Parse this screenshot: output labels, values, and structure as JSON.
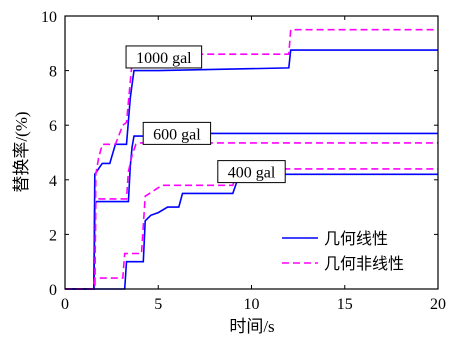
{
  "chart_data": {
    "type": "line",
    "xlabel": "时间/s",
    "ylabel": "替换率/(%)",
    "xlim": [
      0,
      20
    ],
    "ylim": [
      0,
      10
    ],
    "xticks": [
      "0",
      "5",
      "10",
      "15",
      "20"
    ],
    "yticks": [
      "0",
      "2",
      "4",
      "6",
      "8",
      "10"
    ],
    "grid": false,
    "legend_position": "bottom-right",
    "legend": [
      {
        "name": "几何线性",
        "color": "#0000ff",
        "dash": "solid"
      },
      {
        "name": "几何非线性",
        "color": "#ff00ff",
        "dash": "dashed"
      }
    ],
    "annotations": [
      {
        "text": "1000 gal",
        "x": 5.3,
        "y": 8.5
      },
      {
        "text": "600 gal",
        "x": 6.0,
        "y": 5.7
      },
      {
        "text": "400 gal",
        "x": 10.0,
        "y": 4.3
      }
    ],
    "series": [
      {
        "group": "1000 gal",
        "legend_name": "几何线性",
        "color": "#0000ff",
        "dash": "solid",
        "x": [
          0,
          1.55,
          1.6,
          1.7,
          1.9,
          2.0,
          2.4,
          2.7,
          3.3,
          3.5,
          3.6,
          3.7,
          5.0,
          12.0,
          12.1,
          20
        ],
        "y": [
          0,
          0,
          4.2,
          4.3,
          4.5,
          4.6,
          4.6,
          5.3,
          5.3,
          7.0,
          7.5,
          8.0,
          8.0,
          8.1,
          8.75,
          8.75
        ]
      },
      {
        "group": "1000 gal",
        "legend_name": "几何非线性",
        "color": "#ff00ff",
        "dash": "dashed",
        "x": [
          0,
          1.6,
          1.65,
          1.8,
          2.0,
          2.4,
          2.7,
          3.1,
          3.3,
          3.5,
          3.6,
          3.8,
          4.5,
          12.0,
          12.1,
          20
        ],
        "y": [
          0,
          0,
          4.2,
          4.8,
          5.3,
          5.3,
          5.3,
          6.0,
          6.1,
          7.6,
          8.3,
          8.5,
          8.6,
          8.6,
          9.5,
          9.5
        ]
      },
      {
        "group": "600 gal",
        "legend_name": "几何线性",
        "color": "#0000ff",
        "dash": "solid",
        "x": [
          0,
          1.55,
          1.6,
          1.7,
          3.4,
          3.5,
          3.6,
          3.7,
          4.4,
          4.5,
          20
        ],
        "y": [
          0,
          0,
          3.1,
          3.2,
          3.2,
          4.5,
          5.2,
          5.6,
          5.6,
          5.7,
          5.7
        ]
      },
      {
        "group": "600 gal",
        "legend_name": "几何非线性",
        "color": "#ff00ff",
        "dash": "dashed",
        "x": [
          0,
          1.6,
          1.65,
          1.8,
          3.3,
          3.4,
          3.6,
          3.8,
          4.0,
          20
        ],
        "y": [
          0,
          0,
          3.2,
          3.3,
          3.3,
          4.3,
          4.9,
          5.3,
          5.35,
          5.35
        ]
      },
      {
        "group": "400 gal",
        "legend_name": "几何线性",
        "color": "#0000ff",
        "dash": "solid",
        "x": [
          0,
          3.2,
          3.3,
          4.2,
          4.3,
          4.6,
          5.0,
          5.5,
          6.1,
          6.3,
          9.0,
          9.2,
          9.7,
          10.2,
          20
        ],
        "y": [
          0,
          0,
          1.0,
          1.0,
          2.5,
          2.7,
          2.8,
          3.0,
          3.0,
          3.5,
          3.5,
          3.9,
          4.0,
          4.2,
          4.2
        ]
      },
      {
        "group": "400 gal",
        "legend_name": "几何非线性",
        "color": "#ff00ff",
        "dash": "dashed",
        "x": [
          0,
          1.5,
          1.6,
          3.1,
          3.2,
          4.1,
          4.3,
          5.2,
          9.0,
          9.3,
          20
        ],
        "y": [
          0,
          0,
          0.4,
          0.4,
          1.3,
          1.3,
          3.4,
          3.8,
          3.8,
          4.4,
          4.4
        ]
      }
    ]
  }
}
